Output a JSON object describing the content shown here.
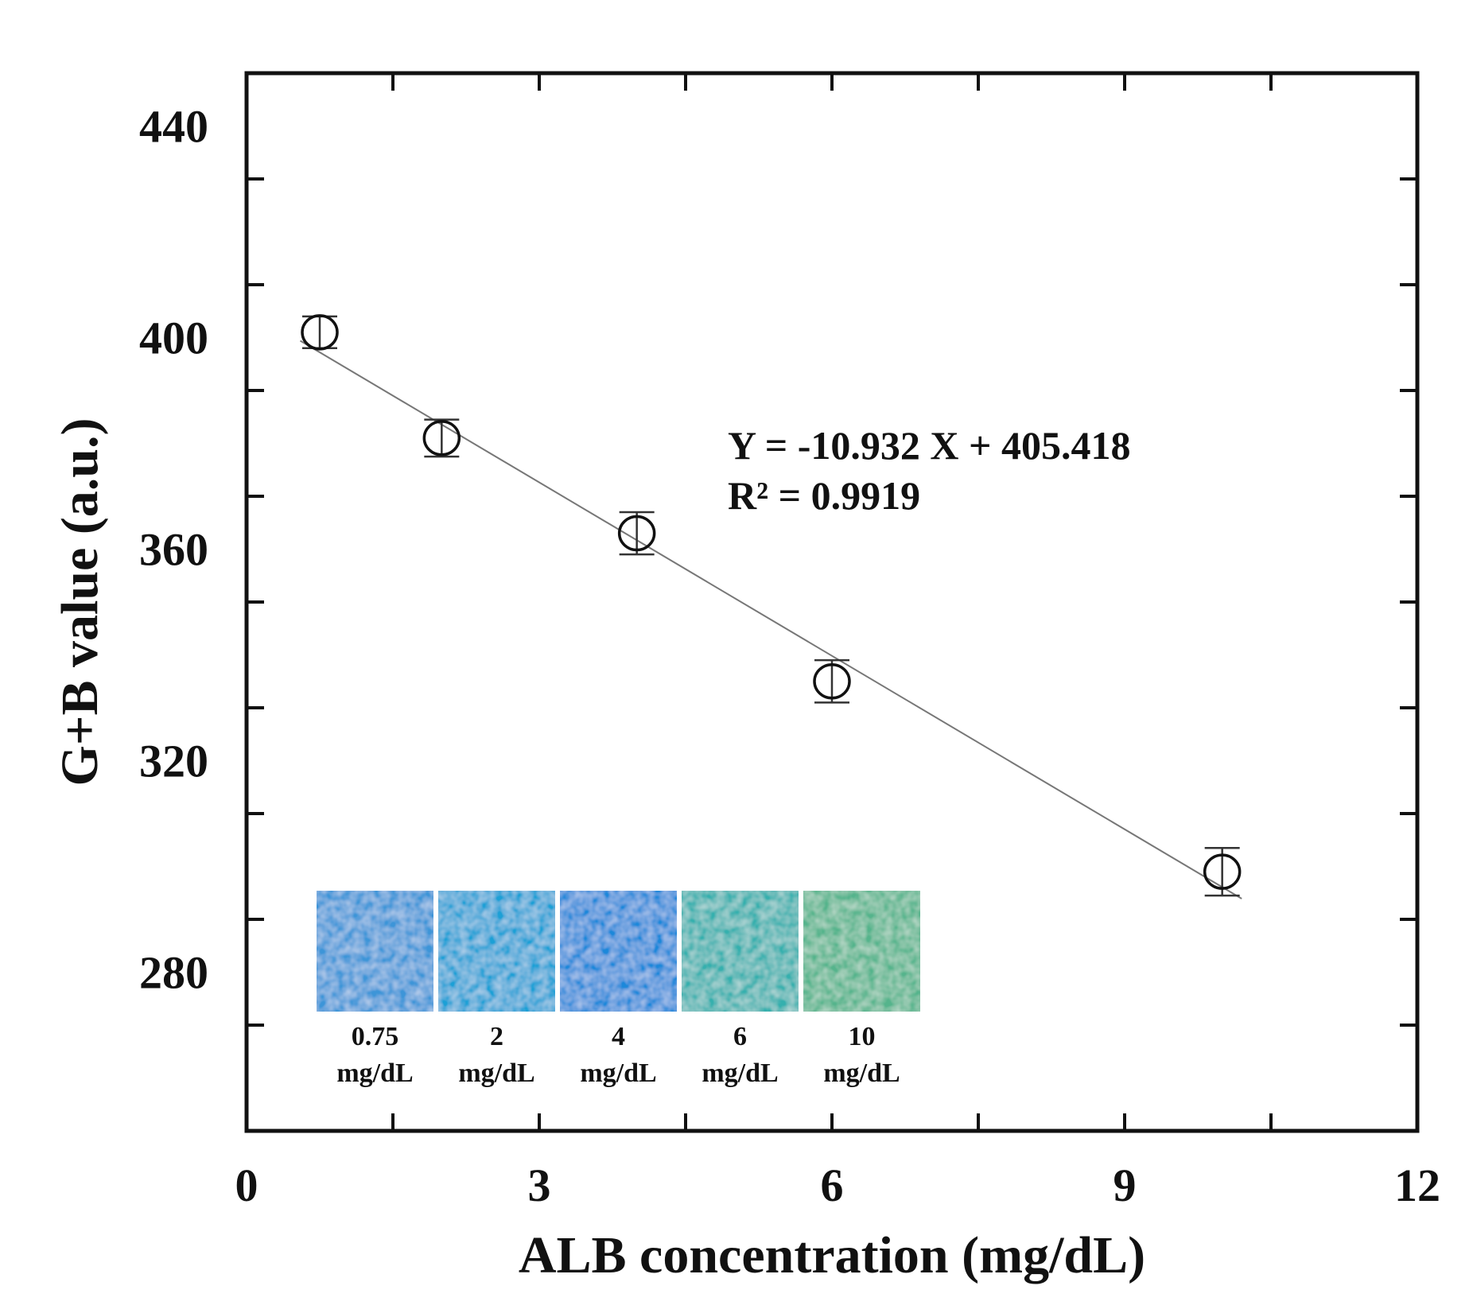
{
  "chart_data": {
    "type": "scatter",
    "title": "",
    "xlabel": "ALB concentration (mg/dL)",
    "ylabel": "G+B value (a.u.)",
    "xlim": [
      0,
      12
    ],
    "ylim": [
      250,
      450
    ],
    "xticks": [
      0,
      3,
      6,
      9,
      12
    ],
    "yticks": [
      280,
      320,
      360,
      400,
      440
    ],
    "x_minor_step": 1.5,
    "y_minor_step": 20,
    "grid": false,
    "series": [
      {
        "name": "G+B value",
        "marker": "open-circle",
        "x": [
          0.75,
          2,
          4,
          6,
          10
        ],
        "y": [
          401,
          381,
          363,
          335,
          299
        ],
        "yerr": [
          3,
          3.5,
          4,
          4,
          4.5
        ]
      }
    ],
    "fit_line": {
      "slope": -10.932,
      "intercept": 405.418,
      "x_range": [
        0.55,
        10.2
      ],
      "equation_text": "Y = -10.932 X + 405.418",
      "r2_text": "R² = 0.9919"
    },
    "inset_swatches": [
      {
        "value": "0.75",
        "unit": "mg/dL",
        "color": "#3c95d8"
      },
      {
        "value": "2",
        "unit": "mg/dL",
        "color": "#1aa0d6"
      },
      {
        "value": "4",
        "unit": "mg/dL",
        "color": "#1b88da"
      },
      {
        "value": "6",
        "unit": "mg/dL",
        "color": "#36b0ae"
      },
      {
        "value": "10",
        "unit": "mg/dL",
        "color": "#55b48c"
      }
    ]
  }
}
